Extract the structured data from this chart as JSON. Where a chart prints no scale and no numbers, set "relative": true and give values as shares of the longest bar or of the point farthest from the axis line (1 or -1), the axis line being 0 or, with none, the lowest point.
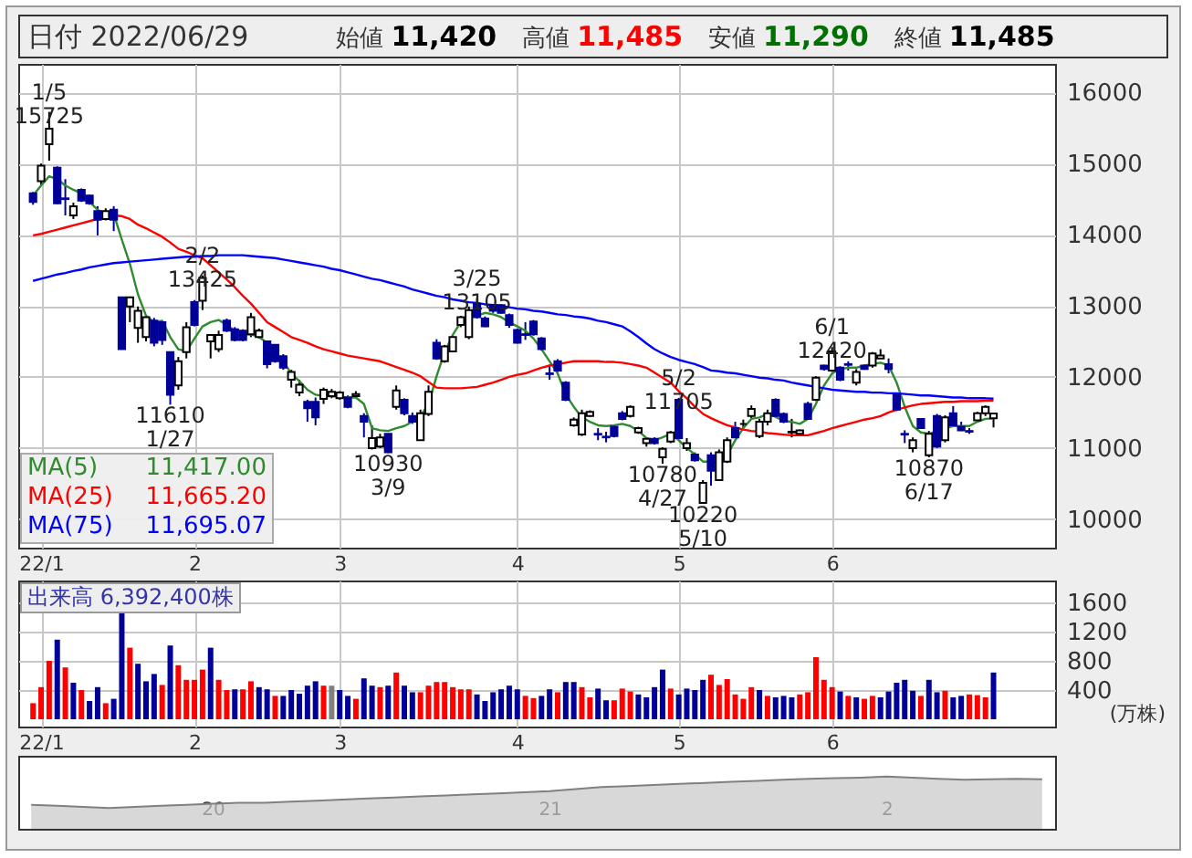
{
  "chart_data": [
    {
      "type": "candlestick",
      "title": "日付 2022/06/29",
      "annotations": [
        "始値 11,420",
        "高値 11,485",
        "安値 11,290",
        "終値 11,485",
        "11,417.00",
        "11,665.20",
        "11,695.07",
        {
          "text": "1/5\n15725",
          "y": 15725
        },
        {
          "text": "2/2\n13425",
          "y": 13425
        },
        {
          "text": "3/25\n13105",
          "y": 13105
        },
        {
          "text": "5/2\n11705",
          "y": 11705
        },
        {
          "text": "6/1\n12420",
          "y": 12420
        },
        {
          "text": "11610\n1/27",
          "y": 11610
        },
        {
          "text": "10930\n3/9",
          "y": 10930
        },
        {
          "text": "10780\n4/27",
          "y": 10780
        },
        {
          "text": "10220\n5/10",
          "y": 10220
        },
        {
          "text": "10870\n6/17",
          "y": 10870
        }
      ],
      "categories": [
        null,
        "22/1",
        null,
        null,
        null,
        null,
        null,
        null,
        null,
        null,
        null,
        null,
        null,
        null,
        null,
        null,
        null,
        null,
        null,
        null,
        "2",
        null,
        null,
        null,
        null,
        null,
        null,
        null,
        null,
        null,
        null,
        null,
        null,
        null,
        null,
        null,
        null,
        null,
        "3",
        null,
        null,
        null,
        null,
        null,
        null,
        null,
        null,
        null,
        null,
        null,
        null,
        null,
        null,
        null,
        null,
        null,
        null,
        null,
        null,
        null,
        "4",
        null,
        null,
        null,
        null,
        null,
        null,
        null,
        null,
        null,
        null,
        null,
        null,
        null,
        null,
        null,
        null,
        null,
        null,
        null,
        "5",
        null,
        null,
        null,
        null,
        null,
        null,
        null,
        null,
        null,
        null,
        null,
        null,
        null,
        null,
        null,
        null,
        null,
        null,
        "6",
        null,
        null,
        null,
        null,
        null,
        null,
        null,
        null,
        null,
        null,
        null,
        null,
        null,
        null,
        null,
        null,
        null,
        null,
        null,
        null
      ],
      "ohlc": [
        [
          14580,
          14600,
          14420,
          14460
        ],
        [
          14750,
          15000,
          14700,
          14970
        ],
        [
          15270,
          15725,
          15040,
          15490
        ],
        [
          14940,
          14960,
          14430,
          14440
        ],
        [
          14510,
          14780,
          14270,
          14500
        ],
        [
          14270,
          14450,
          14220,
          14400
        ],
        [
          14630,
          14650,
          14460,
          14480
        ],
        [
          14550,
          14560,
          14420,
          14440
        ],
        [
          14330,
          14400,
          13990,
          14210
        ],
        [
          14220,
          14370,
          14200,
          14330
        ],
        [
          14350,
          14400,
          14050,
          14210
        ],
        [
          13120,
          13120,
          12390,
          12390
        ],
        [
          12990,
          13130,
          12770,
          13120
        ],
        [
          12690,
          12990,
          12480,
          12930
        ],
        [
          12560,
          12870,
          12500,
          12840
        ],
        [
          12790,
          12830,
          12430,
          12480
        ],
        [
          12770,
          12790,
          12450,
          12520
        ],
        [
          12350,
          12350,
          11610,
          11750
        ],
        [
          11880,
          12280,
          11820,
          12220
        ],
        [
          12350,
          12770,
          12260,
          12700
        ],
        [
          13050,
          13080,
          12710,
          12730
        ],
        [
          13070,
          13425,
          12940,
          13390
        ],
        [
          12500,
          12600,
          12260,
          12590
        ],
        [
          12390,
          12650,
          12350,
          12590
        ],
        [
          12790,
          12820,
          12630,
          12650
        ],
        [
          12670,
          12700,
          12500,
          12520
        ],
        [
          12650,
          12670,
          12500,
          12520
        ],
        [
          12600,
          12900,
          12560,
          12840
        ],
        [
          12560,
          12680,
          12540,
          12650
        ],
        [
          12500,
          12510,
          12120,
          12180
        ],
        [
          12450,
          12460,
          12200,
          12220
        ],
        [
          12290,
          12320,
          12100,
          12130
        ],
        [
          11960,
          12100,
          11850,
          12070
        ],
        [
          11780,
          11960,
          11730,
          11890
        ],
        [
          11650,
          11680,
          11370,
          11560
        ],
        [
          11650,
          11710,
          11320,
          11430
        ],
        [
          11690,
          11850,
          11620,
          11820
        ],
        [
          11730,
          11830,
          11700,
          11790
        ],
        [
          11700,
          11800,
          11680,
          11780
        ],
        [
          11710,
          11740,
          11560,
          11580
        ],
        [
          11730,
          11800,
          11720,
          11760
        ],
        [
          11450,
          11490,
          11150,
          11370
        ],
        [
          11000,
          11320,
          10980,
          11140
        ],
        [
          11020,
          11200,
          11000,
          11150
        ],
        [
          11200,
          11200,
          10930,
          10940
        ],
        [
          11580,
          11880,
          11540,
          11810
        ],
        [
          11680,
          11700,
          11460,
          11490
        ],
        [
          11450,
          11500,
          11340,
          11370
        ],
        [
          11110,
          11540,
          11110,
          11490
        ],
        [
          11480,
          11880,
          11450,
          11790
        ],
        [
          12480,
          12530,
          12240,
          12260
        ],
        [
          12220,
          12450,
          12200,
          12430
        ],
        [
          12360,
          12600,
          12350,
          12560
        ],
        [
          12730,
          12860,
          12700,
          12840
        ],
        [
          12560,
          12990,
          12530,
          12940
        ],
        [
          13030,
          13105,
          12820,
          12840
        ],
        [
          12820,
          12850,
          12700,
          12710
        ],
        [
          13010,
          13020,
          12900,
          12930
        ],
        [
          13010,
          13020,
          12890,
          12900
        ],
        [
          12870,
          12890,
          12690,
          12730
        ],
        [
          12660,
          12680,
          12470,
          12480
        ],
        [
          12600,
          12770,
          12520,
          12590
        ],
        [
          12780,
          12800,
          12580,
          12600
        ],
        [
          12540,
          12560,
          12370,
          12390
        ],
        [
          12050,
          12170,
          11960,
          12040
        ],
        [
          12220,
          12250,
          12070,
          12090
        ],
        [
          11920,
          11940,
          11660,
          11680
        ],
        [
          11320,
          11430,
          11300,
          11400
        ],
        [
          11190,
          11540,
          11170,
          11490
        ],
        [
          11450,
          11530,
          11440,
          11510
        ],
        [
          11200,
          11280,
          11110,
          11190
        ],
        [
          11160,
          11230,
          11080,
          11150
        ],
        [
          11300,
          11330,
          11150,
          11170
        ],
        [
          11490,
          11520,
          11390,
          11410
        ],
        [
          11450,
          11600,
          11430,
          11580
        ],
        [
          11220,
          11300,
          11200,
          11280
        ],
        [
          11070,
          11150,
          11020,
          11130
        ],
        [
          11130,
          11150,
          11050,
          11070
        ],
        [
          10870,
          11010,
          10780,
          10990
        ],
        [
          11090,
          11240,
          11070,
          11220
        ],
        [
          11680,
          11705,
          11130,
          11140
        ],
        [
          11000,
          11140,
          10960,
          11070
        ],
        [
          10910,
          10940,
          10810,
          10830
        ],
        [
          10230,
          10550,
          10220,
          10510
        ],
        [
          10900,
          10940,
          10470,
          10680
        ],
        [
          10550,
          10980,
          10540,
          10940
        ],
        [
          10810,
          11150,
          10790,
          11110
        ],
        [
          11280,
          11370,
          11140,
          11150
        ],
        [
          11340,
          11400,
          11280,
          11340
        ],
        [
          11450,
          11600,
          11410,
          11550
        ],
        [
          11170,
          11410,
          11140,
          11370
        ],
        [
          11370,
          11540,
          11320,
          11490
        ],
        [
          11680,
          11700,
          11430,
          11450
        ],
        [
          11480,
          11500,
          11350,
          11370
        ],
        [
          11220,
          11410,
          11150,
          11230
        ],
        [
          11200,
          11260,
          11190,
          11250
        ],
        [
          11620,
          11650,
          11400,
          11410
        ],
        [
          11680,
          12010,
          11660,
          11990
        ],
        [
          12160,
          12170,
          12090,
          12110
        ],
        [
          12090,
          12420,
          12070,
          12360
        ],
        [
          12130,
          12150,
          11940,
          11960
        ],
        [
          12180,
          12220,
          12090,
          12170
        ],
        [
          11920,
          12110,
          11880,
          12070
        ],
        [
          12160,
          12170,
          12100,
          12110
        ],
        [
          12160,
          12350,
          12130,
          12330
        ],
        [
          12260,
          12390,
          12260,
          12300
        ],
        [
          12180,
          12260,
          12050,
          12110
        ],
        [
          11750,
          11770,
          11520,
          11540
        ],
        [
          11200,
          11250,
          11070,
          11190
        ],
        [
          11000,
          11150,
          10940,
          11110
        ],
        [
          11410,
          11420,
          11270,
          11280
        ],
        [
          10900,
          11240,
          10870,
          11200
        ],
        [
          11450,
          11480,
          11000,
          11020
        ],
        [
          11110,
          11460,
          11080,
          11430
        ],
        [
          11490,
          11590,
          11300,
          11320
        ],
        [
          11300,
          11370,
          11240,
          11250
        ],
        [
          11240,
          11280,
          11200,
          11230
        ],
        [
          11390,
          11510,
          11370,
          11490
        ],
        [
          11490,
          11600,
          11450,
          11580
        ],
        [
          11420,
          11485,
          11290,
          11485
        ]
      ],
      "series": [
        {
          "name": "MA(5)",
          "type": "line",
          "color": "#2e8b2e",
          "values": [
            14550,
            14690,
            14820,
            14780,
            14690,
            14630,
            14580,
            14460,
            14350,
            14290,
            14290,
            13930,
            13590,
            13160,
            12860,
            12770,
            12790,
            12560,
            12390,
            12360,
            12540,
            12710,
            12770,
            12800,
            12730,
            12650,
            12600,
            12600,
            12560,
            12480,
            12350,
            12220,
            12050,
            11940,
            11820,
            11750,
            11730,
            11730,
            11720,
            11710,
            11710,
            11620,
            11280,
            11250,
            11240,
            11280,
            11310,
            11370,
            11450,
            11620,
            12010,
            12350,
            12590,
            12770,
            12840,
            12860,
            12900,
            12880,
            12840,
            12770,
            12710,
            12650,
            12540,
            12390,
            12220,
            12050,
            11750,
            11580,
            11430,
            11370,
            11320,
            11310,
            11320,
            11340,
            11310,
            11240,
            11140,
            11110,
            11150,
            11200,
            11110,
            11000,
            10910,
            10810,
            10810,
            10790,
            10900,
            11110,
            11280,
            11410,
            11430,
            11480,
            11440,
            11380,
            11370,
            11340,
            11410,
            11620,
            11880,
            12050,
            12110,
            12130,
            12130,
            12160,
            12180,
            12200,
            12160,
            11920,
            11580,
            11310,
            11220,
            11200,
            11240,
            11280,
            11310,
            11310,
            11310,
            11370,
            11410,
            11417
          ]
        },
        {
          "name": "MA(25)",
          "type": "line",
          "color": "#ff0000",
          "values": [
            13990,
            14010,
            14040,
            14070,
            14100,
            14130,
            14160,
            14190,
            14220,
            14250,
            14270,
            14260,
            14220,
            14140,
            14090,
            14030,
            13970,
            13890,
            13800,
            13760,
            13710,
            13670,
            13570,
            13470,
            13370,
            13260,
            13140,
            13030,
            12900,
            12770,
            12700,
            12630,
            12560,
            12520,
            12480,
            12430,
            12390,
            12360,
            12330,
            12300,
            12280,
            12260,
            12240,
            12220,
            12180,
            12140,
            12100,
            12060,
            12010,
            11930,
            11850,
            11840,
            11840,
            11840,
            11850,
            11860,
            11890,
            11920,
            11960,
            12000,
            12030,
            12050,
            12090,
            12130,
            12160,
            12180,
            12200,
            12220,
            12220,
            12220,
            12220,
            12210,
            12210,
            12200,
            12180,
            12160,
            12130,
            12060,
            11990,
            11920,
            11800,
            11700,
            11580,
            11480,
            11420,
            11370,
            11320,
            11290,
            11260,
            11240,
            11230,
            11210,
            11200,
            11190,
            11180,
            11180,
            11180,
            11210,
            11240,
            11280,
            11310,
            11340,
            11370,
            11400,
            11420,
            11450,
            11500,
            11540,
            11570,
            11600,
            11620,
            11630,
            11640,
            11650,
            11650,
            11660,
            11660,
            11660,
            11665,
            11665.2
          ]
        },
        {
          "name": "MA(75)",
          "type": "line",
          "color": "#0000ff",
          "values": [
            13350,
            13380,
            13410,
            13440,
            13460,
            13490,
            13510,
            13540,
            13560,
            13580,
            13600,
            13610,
            13620,
            13630,
            13640,
            13650,
            13660,
            13670,
            13680,
            13690,
            13690,
            13700,
            13700,
            13710,
            13710,
            13710,
            13710,
            13700,
            13690,
            13680,
            13670,
            13650,
            13630,
            13610,
            13590,
            13570,
            13550,
            13520,
            13500,
            13470,
            13440,
            13410,
            13380,
            13360,
            13330,
            13300,
            13270,
            13230,
            13200,
            13170,
            13140,
            13120,
            13090,
            13070,
            13050,
            13040,
            13020,
            13010,
            13000,
            12980,
            12960,
            12950,
            12930,
            12920,
            12900,
            12880,
            12870,
            12850,
            12840,
            12820,
            12790,
            12770,
            12740,
            12710,
            12640,
            12560,
            12470,
            12390,
            12330,
            12280,
            12240,
            12210,
            12180,
            12140,
            12090,
            12080,
            12060,
            12050,
            12030,
            12010,
            11990,
            11980,
            11960,
            11950,
            11920,
            11900,
            11880,
            11860,
            11840,
            11820,
            11810,
            11800,
            11790,
            11790,
            11780,
            11780,
            11770,
            11770,
            11760,
            11750,
            11740,
            11740,
            11730,
            11720,
            11710,
            11710,
            11700,
            11700,
            11700,
            11695.07
          ]
        }
      ],
      "ylim": [
        9600,
        16400
      ],
      "yticks": [
        10000,
        11000,
        12000,
        13000,
        14000,
        15000,
        16000
      ],
      "grid": true,
      "legend": "bottom left"
    },
    {
      "type": "bar",
      "title": "出来高 6,392,400株",
      "ylabel": "(万株)",
      "categories": [
        null,
        "22/1",
        null,
        null,
        null,
        null,
        null,
        null,
        null,
        null,
        null,
        null,
        null,
        null,
        null,
        null,
        null,
        null,
        null,
        null,
        "2",
        null,
        null,
        null,
        null,
        null,
        null,
        null,
        null,
        null,
        null,
        null,
        null,
        null,
        null,
        null,
        null,
        null,
        "3",
        null,
        null,
        null,
        null,
        null,
        null,
        null,
        null,
        null,
        null,
        null,
        null,
        null,
        null,
        null,
        null,
        null,
        null,
        null,
        null,
        null,
        "4",
        null,
        null,
        null,
        null,
        null,
        null,
        null,
        null,
        null,
        null,
        null,
        null,
        null,
        null,
        null,
        null,
        null,
        null,
        null,
        "5",
        null,
        null,
        null,
        null,
        null,
        null,
        null,
        null,
        null,
        null,
        null,
        null,
        null,
        null,
        null,
        null,
        null,
        null,
        "6",
        null,
        null,
        null,
        null,
        null,
        null,
        null,
        null,
        null,
        null,
        null,
        null,
        null,
        null,
        null,
        null,
        null,
        null,
        null,
        null
      ],
      "values": [
        220,
        440,
        800,
        1090,
        710,
        500,
        400,
        250,
        440,
        220,
        280,
        1510,
        980,
        760,
        520,
        620,
        470,
        1010,
        740,
        540,
        540,
        680,
        980,
        540,
        400,
        410,
        410,
        520,
        440,
        410,
        320,
        320,
        400,
        350,
        460,
        520,
        460,
        460,
        400,
        320,
        280,
        560,
        460,
        440,
        460,
        640,
        460,
        370,
        370,
        460,
        510,
        510,
        440,
        410,
        410,
        340,
        250,
        370,
        410,
        460,
        410,
        320,
        290,
        320,
        410,
        370,
        510,
        510,
        440,
        300,
        420,
        260,
        260,
        420,
        380,
        340,
        300,
        440,
        680,
        420,
        340,
        420,
        400,
        540,
        610,
        470,
        550,
        340,
        280,
        440,
        400,
        320,
        300,
        320,
        300,
        340,
        370,
        850,
        540,
        440,
        380,
        320,
        300,
        280,
        320,
        300,
        380,
        500,
        540,
        390,
        320,
        540,
        370,
        390,
        300,
        320,
        340,
        330,
        300,
        640
      ],
      "colors": [
        "#ff0000",
        "#ff0000",
        "#ff0000",
        "#000099",
        "#ff0000",
        "#000099",
        "#ff0000",
        "#000099",
        "#000099",
        "#ff0000",
        "#000099",
        "#000099",
        "#ff0000",
        "#000099",
        "#000099",
        "#000099",
        "#ff0000",
        "#000099",
        "#ff0000",
        "#ff0000",
        "#ff0000",
        "#ff0000",
        "#000099",
        "#ff0000",
        "#ff0000",
        "#000099",
        "#ff0000",
        "#ff0000",
        "#000099",
        "#000099",
        "#ff0000",
        "#000099",
        "#000099",
        "#000099",
        "#000099",
        "#000099",
        "#ff0000",
        "#808080",
        "#000099",
        "#000099",
        "#ff0000",
        "#000099",
        "#000099",
        "#ff0000",
        "#000099",
        "#ff0000",
        "#000099",
        "#000099",
        "#ff0000",
        "#ff0000",
        "#ff0000",
        "#ff0000",
        "#ff0000",
        "#ff0000",
        "#ff0000",
        "#000099",
        "#000099",
        "#000099",
        "#000099",
        "#000099",
        "#000099",
        "#ff0000",
        "#ff0000",
        "#000099",
        "#000099",
        "#ff0000",
        "#000099",
        "#000099",
        "#ff0000",
        "#ff0000",
        "#000099",
        "#000099",
        "#ff0000",
        "#ff0000",
        "#ff0000",
        "#000099",
        "#000099",
        "#000099",
        "#000099",
        "#ff0000",
        "#000099",
        "#000099",
        "#000099",
        "#000099",
        "#ff0000",
        "#ff0000",
        "#ff0000",
        "#ff0000",
        "#ff0000",
        "#ff0000",
        "#000099",
        "#ff0000",
        "#000099",
        "#000099",
        "#000099",
        "#ff0000",
        "#ff0000",
        "#ff0000",
        "#ff0000",
        "#ff0000",
        "#000099",
        "#ff0000",
        "#000099",
        "#ff0000",
        "#ff0000",
        "#000099",
        "#000099",
        "#000099",
        "#000099",
        "#000099",
        "#ff0000",
        "#000099",
        "#000099",
        "#ff0000",
        "#000099",
        "#000099",
        "#ff0000",
        "#ff0000",
        "#ff0000",
        "#000099"
      ],
      "ylim": [
        -100,
        1900
      ],
      "yticks": [
        400,
        800,
        1200,
        1600
      ],
      "grid": true
    },
    {
      "type": "area",
      "relative": true,
      "color": "#c8c8c8",
      "categories": [
        null,
        null,
        null,
        null,
        null,
        null,
        null,
        "20",
        null,
        null,
        null,
        null,
        null,
        null,
        null,
        null,
        null,
        null,
        null,
        null,
        "21",
        null,
        null,
        null,
        null,
        null,
        null,
        null,
        null,
        null,
        null,
        null,
        null,
        "2",
        null,
        null,
        null,
        null,
        null,
        null
      ],
      "values": [
        0.46,
        0.44,
        0.42,
        0.4,
        0.42,
        0.44,
        0.46,
        0.48,
        0.5,
        0.5,
        0.52,
        0.54,
        0.56,
        0.58,
        0.6,
        0.62,
        0.64,
        0.66,
        0.68,
        0.7,
        0.72,
        0.76,
        0.8,
        0.82,
        0.84,
        0.86,
        0.88,
        0.9,
        0.92,
        0.94,
        0.96,
        0.97,
        0.98,
        1,
        0.98,
        0.96,
        0.94,
        0.95,
        0.96,
        0.95
      ]
    }
  ]
}
